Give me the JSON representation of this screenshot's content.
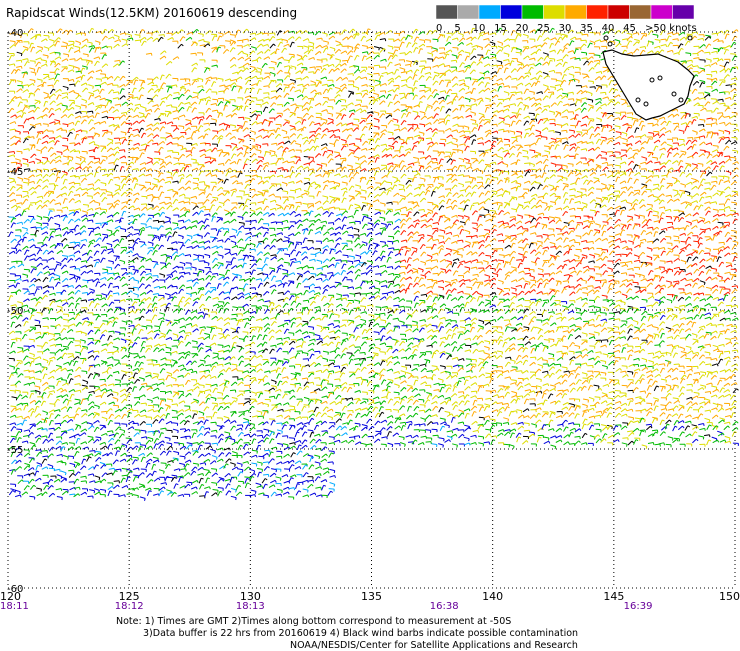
{
  "title": "Rapidscat Winds(12.5KM) 20160619 descending",
  "legend": {
    "labels": [
      "0",
      "5",
      "10",
      "15",
      "20",
      "25",
      "30",
      "35",
      "40",
      "45",
      ">50 knots"
    ],
    "colors": [
      "#555555",
      "#aaaaaa",
      "#00aaff",
      "#0000dd",
      "#00bb00",
      "#dddd00",
      "#ffaa00",
      "#ff2200",
      "#cc0000",
      "#996633",
      "#cc00cc",
      "#6600aa"
    ]
  },
  "map": {
    "lon_range": [
      120,
      150
    ],
    "lat_range": [
      -60,
      -40
    ],
    "lon_ticks": [
      "120",
      "125",
      "130",
      "135",
      "140",
      "145",
      "150"
    ],
    "lat_ticks": [
      "-40",
      "-45",
      "-50",
      "-55",
      "-60"
    ],
    "time_labels": [
      {
        "lon": 120,
        "text": "18:11"
      },
      {
        "lon": 125,
        "text": "18:12"
      },
      {
        "lon": 130,
        "text": "18:13"
      },
      {
        "lon": 138,
        "text": "16:38"
      },
      {
        "lon": 146,
        "text": "16:39"
      }
    ],
    "land": "Tasmania"
  },
  "footer": {
    "line1": "Note: 1) Times are GMT 2)Times along bottom correspond to measurement at -50S",
    "line2": "3)Data buffer is 22 hrs from 20160619 4) Black wind barbs indicate possible contamination",
    "line3": "NOAA/NESDIS/Center for Satellite Applications and Research"
  }
}
